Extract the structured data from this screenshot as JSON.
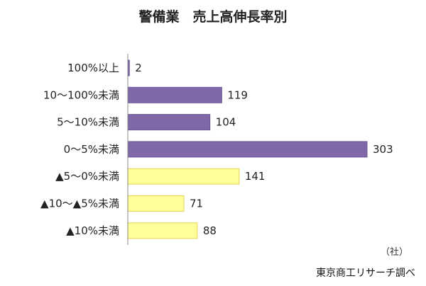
{
  "chart_data": {
    "type": "bar",
    "orientation": "horizontal",
    "title": "警備業　売上高伸長率別",
    "categories": [
      "100%以上",
      "10～100%未満",
      "5～10%未満",
      "0～5%未満",
      "▲5～0%未満",
      "▲10～▲5%未満",
      "▲10%未満"
    ],
    "values": [
      2,
      119,
      104,
      303,
      141,
      71,
      88
    ],
    "bar_colors": [
      "#8067a8",
      "#8067a8",
      "#8067a8",
      "#8067a8",
      "#ffff99",
      "#ffff99",
      "#ffff99"
    ],
    "bar_edge_colors": [
      "#6d5696",
      "#6d5696",
      "#6d5696",
      "#6d5696",
      "#e6d25a",
      "#e6d25a",
      "#e6d25a"
    ],
    "unit_label": "（社）",
    "xlim": [
      0,
      320
    ],
    "grid": false,
    "legend": "none"
  },
  "source": "東京商工リサーチ調べ"
}
